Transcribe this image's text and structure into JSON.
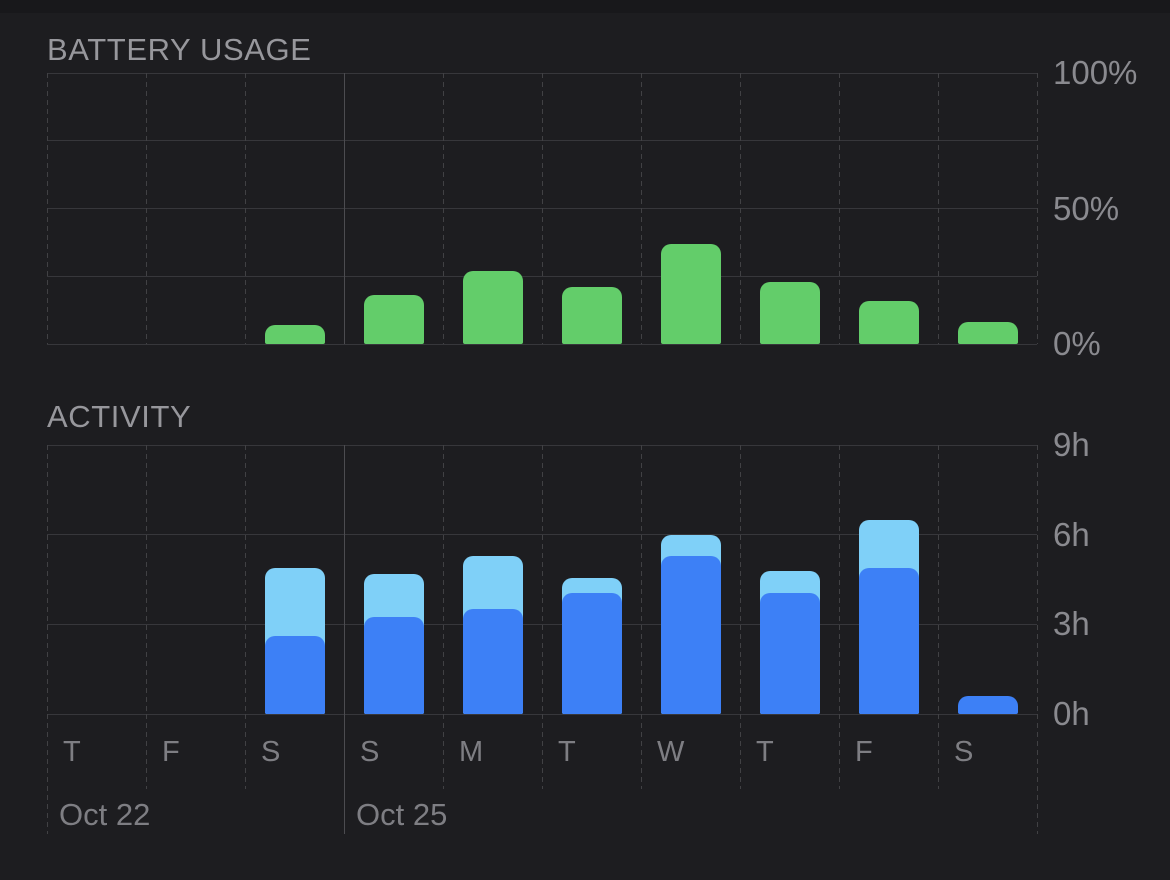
{
  "panel": {
    "background_color": "#1d1d20",
    "gridline_color": "#37373b",
    "dashed_line_color": "#414144",
    "highlight_line_color": "#4c4c50"
  },
  "chart_data": [
    {
      "id": "battery_usage",
      "type": "bar",
      "title": "BATTERY USAGE",
      "categories": [
        "T",
        "F",
        "S",
        "S",
        "M",
        "T",
        "W",
        "T",
        "F",
        "S"
      ],
      "values": [
        0,
        0,
        7,
        18,
        27,
        21,
        37,
        23,
        16,
        8
      ],
      "unit": "percent",
      "ylim": [
        0,
        100
      ],
      "grid_values": [
        0,
        25,
        50,
        75,
        100
      ],
      "yticks": [
        {
          "label": "100%",
          "value": 100
        },
        {
          "label": "50%",
          "value": 50
        },
        {
          "label": "0%",
          "value": 0
        }
      ],
      "bar_color": "#63cd6a",
      "legend_position": "none",
      "grid": "horizontal-solid, vertical-dashed"
    },
    {
      "id": "activity",
      "type": "bar-stacked",
      "title": "ACTIVITY",
      "categories": [
        "T",
        "F",
        "S",
        "S",
        "M",
        "T",
        "W",
        "T",
        "F",
        "S"
      ],
      "series": [
        {
          "name": "usage-dark-blue",
          "color": "#3d80f6",
          "values": [
            0,
            0,
            2.6,
            3.25,
            3.5,
            4.05,
            5.3,
            4.05,
            4.9,
            0.6
          ]
        },
        {
          "name": "usage-light-blue",
          "color": "#7fd0f8",
          "values": [
            0,
            0,
            2.3,
            1.45,
            1.8,
            0.5,
            0.7,
            0.75,
            1.6,
            0
          ]
        }
      ],
      "unit": "hours",
      "ylim": [
        0,
        9
      ],
      "grid_values": [
        0,
        3,
        6,
        9
      ],
      "yticks": [
        {
          "label": "9h",
          "value": 9
        },
        {
          "label": "6h",
          "value": 6
        },
        {
          "label": "3h",
          "value": 3
        },
        {
          "label": "0h",
          "value": 0
        }
      ],
      "legend_position": "none",
      "grid": "horizontal-solid, vertical-dashed"
    }
  ],
  "x_axis": {
    "day_labels": [
      "T",
      "F",
      "S",
      "S",
      "M",
      "T",
      "W",
      "T",
      "F",
      "S"
    ],
    "date_labels": [
      {
        "text": "Oct 22",
        "column": 0
      },
      {
        "text": "Oct 25",
        "column": 3
      }
    ],
    "long_tick_columns": [
      0,
      3,
      10
    ],
    "solid_line_column": 3,
    "label_color": "#7e7e83"
  }
}
